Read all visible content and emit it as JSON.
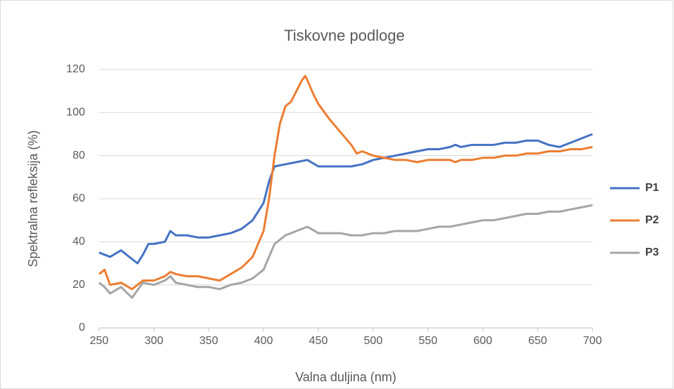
{
  "chart_data": {
    "type": "line",
    "title": "Tiskovne podloge",
    "x_label": "Valna duljina (nm)",
    "y_label": "Spektralna refleksija (%)",
    "xlim": [
      250,
      700
    ],
    "xticks": [
      250,
      300,
      350,
      400,
      450,
      500,
      550,
      600,
      650,
      700
    ],
    "ylim": [
      0,
      120
    ],
    "yticks": [
      0,
      20,
      40,
      60,
      80,
      100,
      120
    ],
    "grid": true,
    "legend": "right",
    "series": [
      {
        "name": "P1",
        "color": "#4472c4",
        "x": [
          250,
          260,
          270,
          280,
          285,
          290,
          295,
          300,
          310,
          315,
          320,
          330,
          340,
          350,
          360,
          370,
          380,
          390,
          400,
          405,
          410,
          420,
          430,
          440,
          450,
          460,
          470,
          480,
          490,
          500,
          510,
          520,
          530,
          540,
          550,
          560,
          570,
          575,
          580,
          590,
          600,
          610,
          620,
          630,
          640,
          650,
          660,
          670,
          680,
          690,
          700
        ],
        "values": [
          35,
          33,
          36,
          32,
          30,
          34,
          39,
          39,
          40,
          45,
          43,
          43,
          42,
          42,
          43,
          44,
          46,
          50,
          58,
          68,
          75,
          76,
          77,
          78,
          75,
          75,
          75,
          75,
          76,
          78,
          79,
          80,
          81,
          82,
          83,
          83,
          84,
          85,
          84,
          85,
          85,
          85,
          86,
          86,
          87,
          87,
          85,
          84,
          86,
          88,
          90
        ]
      },
      {
        "name": "P2",
        "color": "#ed7d31",
        "x": [
          250,
          255,
          260,
          270,
          280,
          290,
          300,
          310,
          315,
          320,
          330,
          340,
          350,
          360,
          370,
          380,
          390,
          400,
          405,
          410,
          415,
          420,
          425,
          430,
          435,
          438,
          440,
          445,
          450,
          460,
          470,
          480,
          485,
          490,
          500,
          510,
          520,
          530,
          540,
          550,
          560,
          570,
          575,
          580,
          590,
          600,
          610,
          620,
          630,
          640,
          650,
          660,
          670,
          680,
          690,
          700
        ],
        "values": [
          25,
          27,
          20,
          21,
          18,
          22,
          22,
          24,
          26,
          25,
          24,
          24,
          23,
          22,
          25,
          28,
          33,
          45,
          60,
          80,
          95,
          103,
          105,
          110,
          115,
          117,
          115,
          109,
          104,
          97,
          91,
          85,
          81,
          82,
          80,
          79,
          78,
          78,
          77,
          78,
          78,
          78,
          77,
          78,
          78,
          79,
          79,
          80,
          80,
          81,
          81,
          82,
          82,
          83,
          83,
          84
        ]
      },
      {
        "name": "P3",
        "color": "#a5a5a5",
        "x": [
          250,
          255,
          260,
          270,
          280,
          290,
          300,
          310,
          315,
          320,
          330,
          340,
          350,
          360,
          370,
          380,
          390,
          400,
          405,
          410,
          420,
          430,
          440,
          450,
          460,
          470,
          480,
          490,
          500,
          510,
          520,
          530,
          540,
          550,
          560,
          570,
          580,
          590,
          600,
          610,
          620,
          630,
          640,
          650,
          660,
          670,
          680,
          690,
          700
        ],
        "values": [
          21,
          19,
          16,
          19,
          14,
          21,
          20,
          22,
          24,
          21,
          20,
          19,
          19,
          18,
          20,
          21,
          23,
          27,
          33,
          39,
          43,
          45,
          47,
          44,
          44,
          44,
          43,
          43,
          44,
          44,
          45,
          45,
          45,
          46,
          47,
          47,
          48,
          49,
          50,
          50,
          51,
          52,
          53,
          53,
          54,
          54,
          55,
          56,
          57
        ]
      }
    ]
  }
}
